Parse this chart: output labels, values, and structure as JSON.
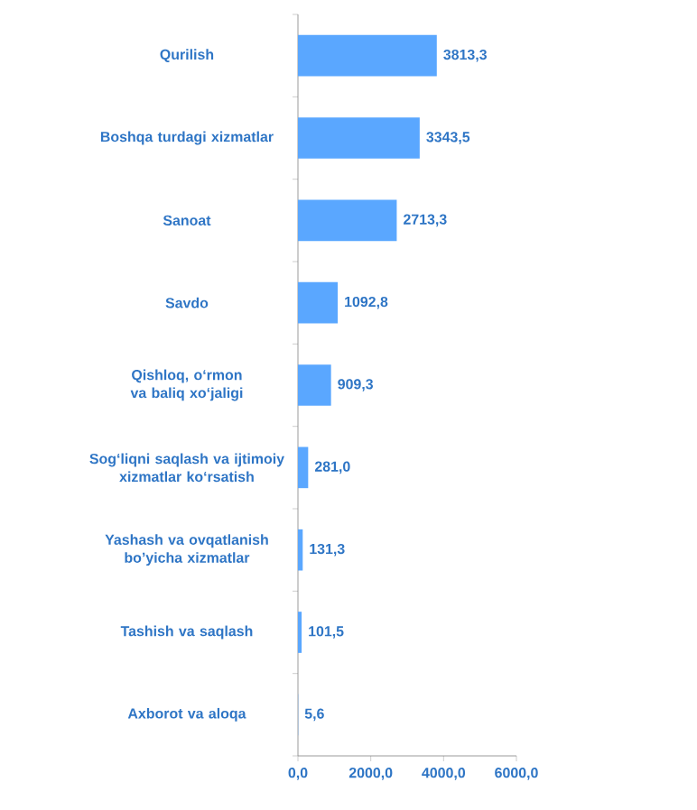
{
  "chart_data": {
    "type": "bar",
    "orientation": "horizontal",
    "categories": [
      "Qurilish",
      "Boshqa turdagi xizmatlar",
      "Sanoat",
      "Savdo",
      "Qishloq, o‘rmon va baliq xo‘jaligi",
      "Sog‘liqni saqlash va ijtimoiy xizmatlar ko‘rsatish",
      "Yashash va ovqatlanish bo’yicha xizmatlar",
      "Tashish va saqlash",
      "Axborot va aloqa"
    ],
    "values": [
      3813.3,
      3343.5,
      2713.3,
      1092.8,
      909.3,
      281.0,
      131.3,
      101.5,
      5.6
    ],
    "value_labels": [
      "3813,3",
      "3343,5",
      "2713,3",
      "1092,8",
      "909,3",
      "281,0",
      "131,3",
      "101,5",
      "5,6"
    ],
    "color": "#5aa7ff",
    "xlim": [
      0,
      6000
    ],
    "xticks": [
      {
        "value": 0,
        "label": "0,0"
      },
      {
        "value": 2000,
        "label": "2000,0"
      },
      {
        "value": 4000,
        "label": "4000,0"
      },
      {
        "value": 6000,
        "label": "6000,0"
      }
    ]
  }
}
